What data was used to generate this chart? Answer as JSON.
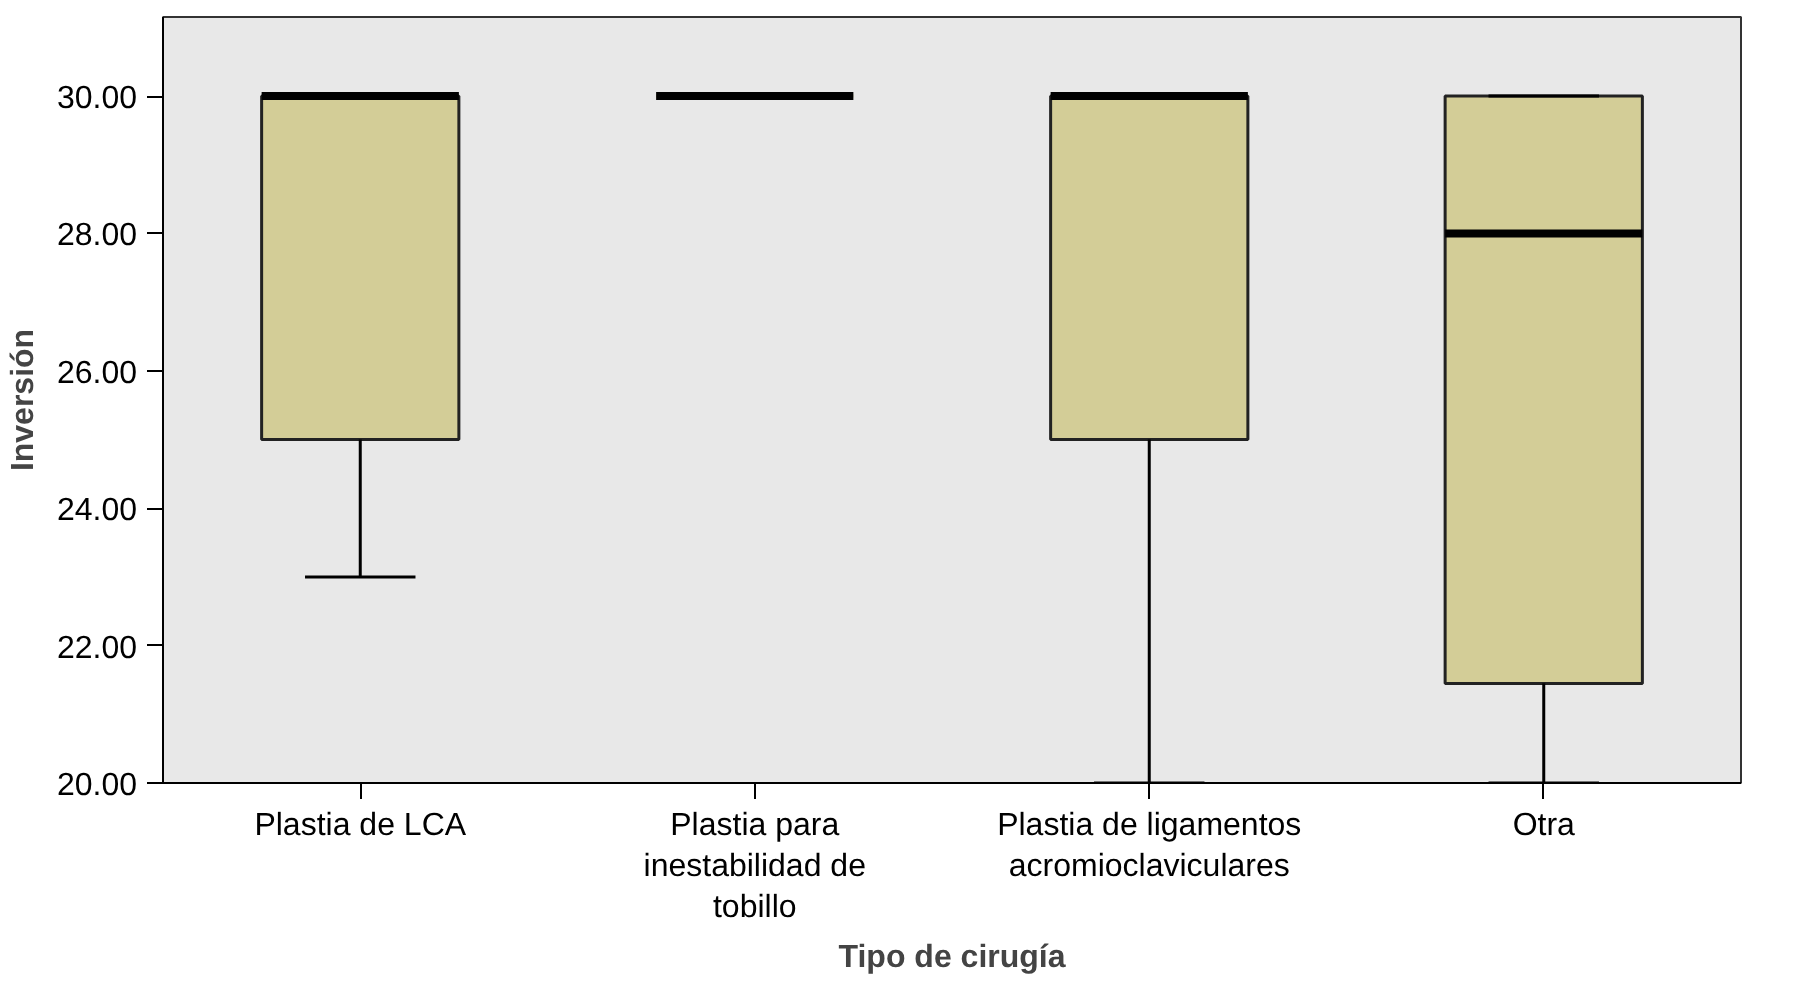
{
  "chart_data": {
    "type": "box",
    "xlabel": "Tipo de cirugía",
    "ylabel": "Inversión",
    "categories": [
      "Plastia de LCA",
      "Plastia para\ninestabilidad de\ntobillo",
      "Plastia de ligamentos\nacromioclaviculares",
      "Otra"
    ],
    "boxes": [
      {
        "low": 23,
        "q1": 25,
        "median": 30,
        "q3": 30,
        "high": 30
      },
      {
        "low": 30,
        "q1": 30,
        "median": 30,
        "q3": 30,
        "high": 30
      },
      {
        "low": 20,
        "q1": 25,
        "median": 30,
        "q3": 30,
        "high": 30
      },
      {
        "low": 20,
        "q1": 21.45,
        "median": 28,
        "q3": 30,
        "high": 30
      }
    ],
    "color": "#d3cd97",
    "ylim": [
      20,
      31.15
    ],
    "yticks": [
      {
        "value": 20,
        "label": "20.00"
      },
      {
        "value": 22,
        "label": "22.00"
      },
      {
        "value": 24,
        "label": "24.00"
      },
      {
        "value": 26,
        "label": "26.00"
      },
      {
        "value": 28,
        "label": "28.00"
      },
      {
        "value": 30,
        "label": "30.00"
      }
    ],
    "grid": false
  }
}
